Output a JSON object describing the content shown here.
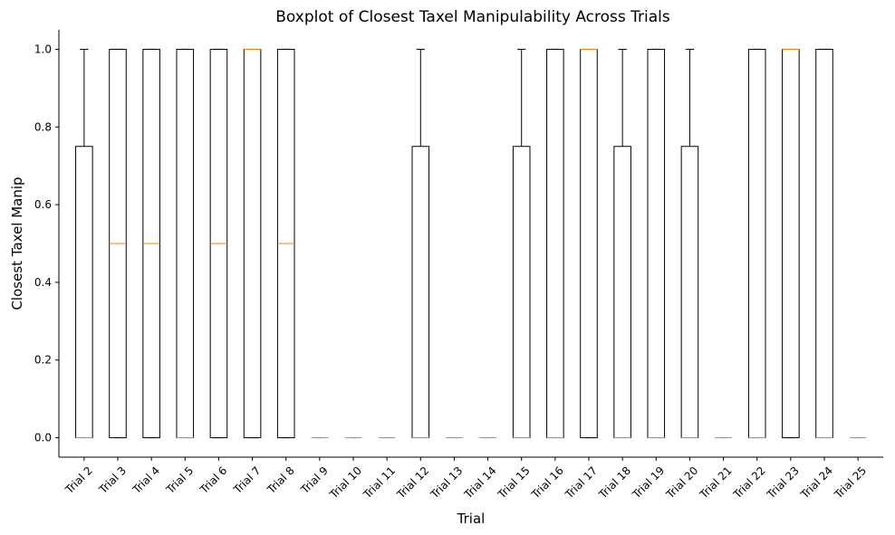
{
  "chart_data": {
    "type": "boxplot",
    "title": "Boxplot of Closest Taxel Manipulability Across Trials",
    "xlabel": "Trial",
    "ylabel": "Closest Taxel Manip",
    "ylim": [
      -0.05,
      1.05
    ],
    "yticks": [
      "0.0",
      "0.2",
      "0.4",
      "0.6",
      "0.8",
      "1.0"
    ],
    "ytick_values": [
      0.0,
      0.2,
      0.4,
      0.6,
      0.8,
      1.0
    ],
    "grid": false,
    "categories": [
      "Trial 2",
      "Trial 3",
      "Trial 4",
      "Trial 5",
      "Trial 6",
      "Trial 7",
      "Trial 8",
      "Trial 9",
      "Trial 10",
      "Trial 11",
      "Trial 12",
      "Trial 13",
      "Trial 14",
      "Trial 15",
      "Trial 16",
      "Trial 17",
      "Trial 18",
      "Trial 19",
      "Trial 20",
      "Trial 21",
      "Trial 22",
      "Trial 23",
      "Trial 24",
      "Trial 25"
    ],
    "boxes": [
      {
        "q1": 0,
        "median": 0,
        "q3": 0.75,
        "whislo": 0,
        "whishi": 1
      },
      {
        "q1": 0,
        "median": 0.5,
        "q3": 1,
        "whislo": 0,
        "whishi": 1
      },
      {
        "q1": 0,
        "median": 0.5,
        "q3": 1,
        "whislo": 0,
        "whishi": 1
      },
      {
        "q1": 0,
        "median": 0,
        "q3": 1,
        "whislo": 0,
        "whishi": 1
      },
      {
        "q1": 0,
        "median": 0.5,
        "q3": 1,
        "whislo": 0,
        "whishi": 1
      },
      {
        "q1": 0,
        "median": 1,
        "q3": 1,
        "whislo": 0,
        "whishi": 1
      },
      {
        "q1": 0,
        "median": 0.5,
        "q3": 1,
        "whislo": 0,
        "whishi": 1
      },
      {
        "q1": 0,
        "median": 0,
        "q3": 0,
        "whislo": 0,
        "whishi": 0
      },
      {
        "q1": 0,
        "median": 0,
        "q3": 0,
        "whislo": 0,
        "whishi": 0
      },
      {
        "q1": 0,
        "median": 0,
        "q3": 0,
        "whislo": 0,
        "whishi": 0
      },
      {
        "q1": 0,
        "median": 0,
        "q3": 0.75,
        "whislo": 0,
        "whishi": 1
      },
      {
        "q1": 0,
        "median": 0,
        "q3": 0,
        "whislo": 0,
        "whishi": 0
      },
      {
        "q1": 0,
        "median": 0,
        "q3": 0,
        "whislo": 0,
        "whishi": 0
      },
      {
        "q1": 0,
        "median": 0,
        "q3": 0.75,
        "whislo": 0,
        "whishi": 1
      },
      {
        "q1": 0,
        "median": 0,
        "q3": 1,
        "whislo": 0,
        "whishi": 1
      },
      {
        "q1": 0,
        "median": 1,
        "q3": 1,
        "whislo": 0,
        "whishi": 1
      },
      {
        "q1": 0,
        "median": 0,
        "q3": 0.75,
        "whislo": 0,
        "whishi": 1
      },
      {
        "q1": 0,
        "median": 0,
        "q3": 1,
        "whislo": 0,
        "whishi": 1
      },
      {
        "q1": 0,
        "median": 0,
        "q3": 0.75,
        "whislo": 0,
        "whishi": 1
      },
      {
        "q1": 0,
        "median": 0,
        "q3": 0,
        "whislo": 0,
        "whishi": 0
      },
      {
        "q1": 0,
        "median": 0,
        "q3": 1,
        "whislo": 0,
        "whishi": 1
      },
      {
        "q1": 0,
        "median": 1,
        "q3": 1,
        "whislo": 0,
        "whishi": 1
      },
      {
        "q1": 0,
        "median": 0,
        "q3": 1,
        "whislo": 0,
        "whishi": 1
      },
      {
        "q1": 0,
        "median": 0,
        "q3": 0,
        "whislo": 0,
        "whishi": 0
      }
    ],
    "colors": {
      "box": "#000000",
      "median": "#ff7f0e"
    }
  }
}
